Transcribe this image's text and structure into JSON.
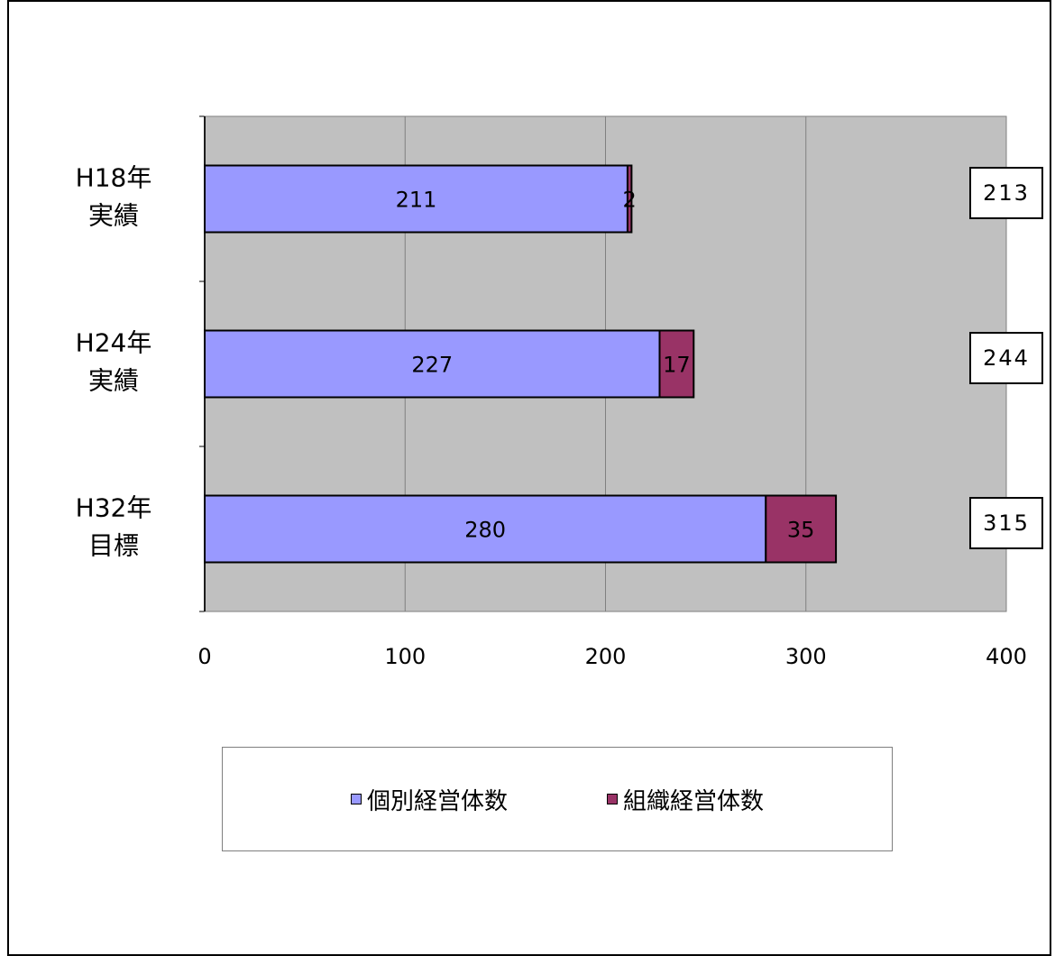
{
  "chart_data": {
    "type": "bar",
    "orientation": "horizontal",
    "stacked": true,
    "categories": [
      "H18年実績",
      "H24年実績",
      "H32年目標"
    ],
    "series": [
      {
        "name": "個別経営体数",
        "values": [
          211,
          227,
          280
        ],
        "color": "#9999ff"
      },
      {
        "name": "組織経営体数",
        "values": [
          2,
          17,
          35
        ],
        "color": "#993366"
      }
    ],
    "totals": [
      213,
      244,
      315
    ],
    "xlim": [
      0,
      400
    ],
    "xticks": [
      0,
      100,
      200,
      300,
      400
    ],
    "grid": true,
    "plot_background": "#c0c0c0",
    "legend_position": "bottom",
    "title": "",
    "xlabel": "",
    "ylabel": ""
  }
}
